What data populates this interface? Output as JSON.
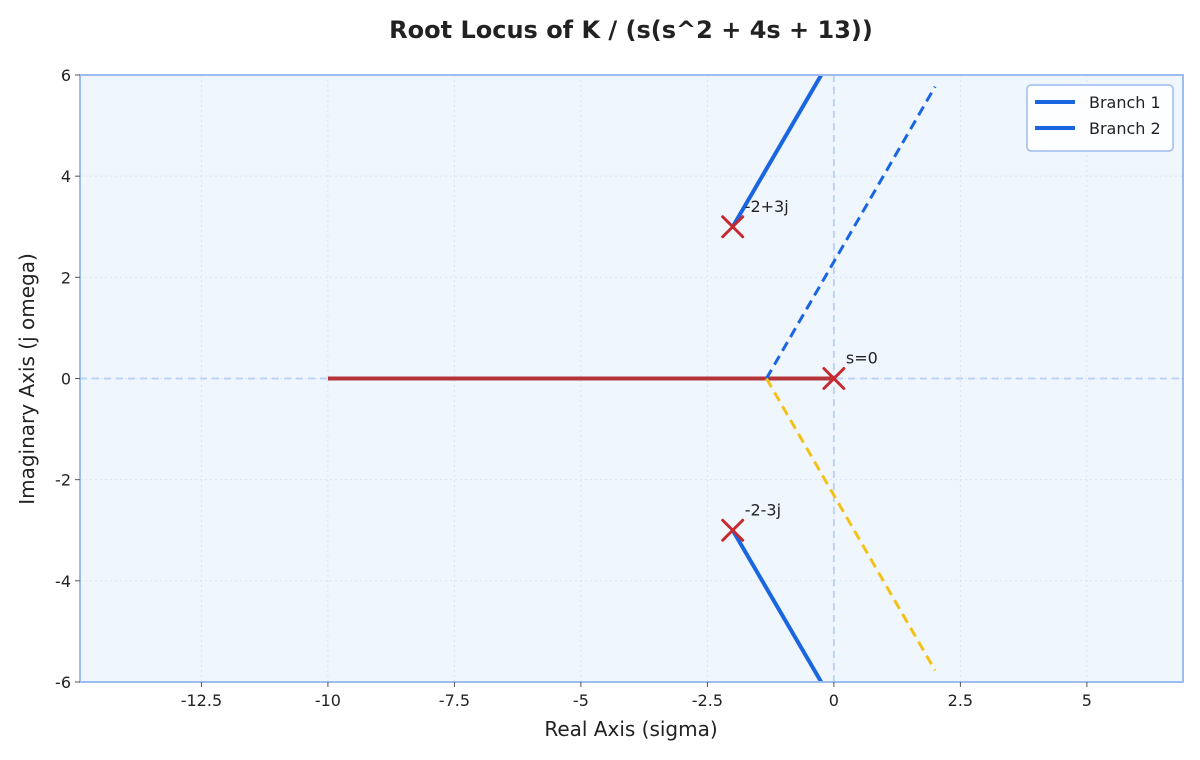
{
  "chart_data": {
    "type": "line",
    "title": "Root Locus of K / (s(s^2 + 4s + 13))",
    "xlabel": "Real Axis (sigma)",
    "ylabel": "Imaginary Axis (j omega)",
    "xlim": [
      -14.9,
      6.9
    ],
    "ylim": [
      -6,
      6
    ],
    "x_ticks": [
      -12.5,
      -10,
      -7.5,
      -5,
      -2.5,
      0,
      2.5,
      5
    ],
    "x_tick_labels": [
      "-12.5",
      "-10",
      "-7.5",
      "-5",
      "-2.5",
      "0",
      "2.5",
      "5"
    ],
    "y_ticks": [
      -6,
      -4,
      -2,
      0,
      2,
      4,
      6
    ],
    "y_tick_labels": [
      "-6",
      "-4",
      "-2",
      "0",
      "2",
      "4",
      "6"
    ],
    "grid": true,
    "legend_position": "top-right",
    "series": [
      {
        "name": "Branch 1",
        "color": "#1a66e0",
        "style": "solid",
        "points": [
          [
            -2,
            3
          ],
          [
            -0.25,
            6
          ]
        ]
      },
      {
        "name": "Branch 2",
        "color": "#1a66e0",
        "style": "solid",
        "points": [
          [
            -2,
            -3
          ],
          [
            -0.25,
            -6
          ]
        ]
      },
      {
        "color": "#b5343a",
        "style": "solid",
        "points": [
          [
            -10,
            0
          ],
          [
            0,
            0
          ]
        ]
      },
      {
        "color": "#1a66e0",
        "style": "dashed",
        "points": [
          [
            -1.333,
            0
          ],
          [
            2,
            5.77
          ]
        ]
      },
      {
        "color": "#f2c218",
        "style": "dashed",
        "points": [
          [
            -1.333,
            0
          ],
          [
            2,
            -5.77
          ]
        ]
      }
    ],
    "poles": [
      {
        "x": 0,
        "y": 0,
        "label": "s=0"
      },
      {
        "x": -2,
        "y": 3,
        "label": "-2+3j"
      },
      {
        "x": -2,
        "y": -3,
        "label": "-2-3j"
      }
    ],
    "colors": {
      "branch": "#1a66e0",
      "real_axis_locus": "#b5343a",
      "asymptote_upper": "#1a66e0",
      "asymptote_lower": "#f2c218",
      "pole_marker": "#c62a2f",
      "plot_background": "#f0f6fd",
      "plot_border": "#9dbcf0",
      "reference_lines": "#bcd4f2"
    }
  }
}
